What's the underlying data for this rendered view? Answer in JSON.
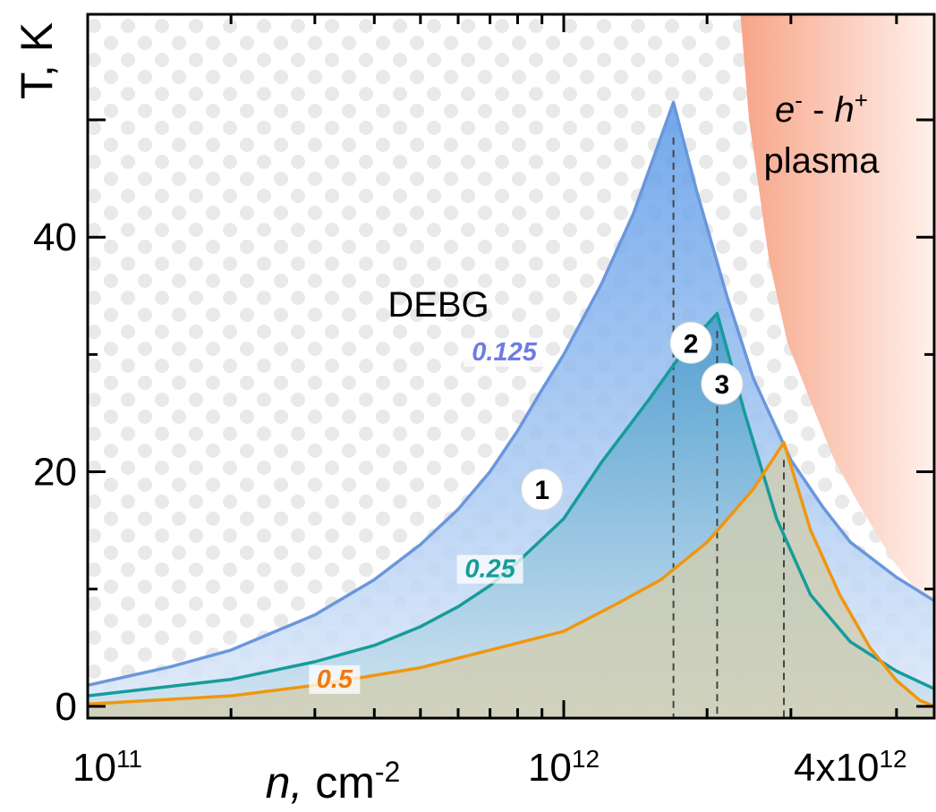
{
  "chart_data": {
    "type": "area",
    "xscale": "log",
    "xlim": [
      100000000000.0,
      6000000000000.0
    ],
    "ylim": [
      -1,
      59
    ],
    "xlabel": {
      "var": "n,",
      "unit": " cm",
      "exp": "-2"
    },
    "ylabel": "T, K",
    "xticks": [
      {
        "value": 100000000000.0,
        "base": "10",
        "exp": "11"
      },
      {
        "value": 1000000000000.0,
        "base": "10",
        "exp": "12"
      },
      {
        "value": 4000000000000.0,
        "base": "4x10",
        "exp": "12"
      }
    ],
    "yticks": [
      {
        "value": 0,
        "label": "0"
      },
      {
        "value": 20,
        "label": "20"
      },
      {
        "value": 40,
        "label": "40"
      }
    ],
    "regions": {
      "debg": "DEBG",
      "plasma_line1_a": "e",
      "plasma_line1_a_sup": "-",
      "plasma_line1_mid": " - ",
      "plasma_line1_b": "h",
      "plasma_line1_b_sup": "+",
      "plasma_line2": "plasma",
      "plasma_boundary": [
        [
          2350000000000.0,
          59
        ],
        [
          2450000000000.0,
          50
        ],
        [
          2700000000000.0,
          38
        ],
        [
          2950000000000.0,
          31
        ],
        [
          3300000000000.0,
          26
        ],
        [
          3700000000000.0,
          21
        ],
        [
          4200000000000.0,
          17
        ],
        [
          4900000000000.0,
          12.5
        ],
        [
          5600000000000.0,
          9.5
        ],
        [
          6000000000000.0,
          8
        ]
      ]
    },
    "series": [
      {
        "label": "0.125",
        "color": "#6a97dc",
        "fill": "#8fb9f0",
        "label_color": "#6e7ce0",
        "label_at": [
          750000000000.0,
          29.5
        ],
        "points": [
          [
            100000000000.0,
            1.8
          ],
          [
            150000000000.0,
            3.4
          ],
          [
            200000000000.0,
            4.8
          ],
          [
            300000000000.0,
            7.8
          ],
          [
            400000000000.0,
            10.8
          ],
          [
            500000000000.0,
            13.8
          ],
          [
            600000000000.0,
            16.8
          ],
          [
            700000000000.0,
            20
          ],
          [
            800000000000.0,
            23.5
          ],
          [
            900000000000.0,
            27
          ],
          [
            1000000000000.0,
            30
          ],
          [
            1200000000000.0,
            36
          ],
          [
            1400000000000.0,
            42
          ],
          [
            1700000000000.0,
            51.5
          ],
          [
            1900000000000.0,
            44
          ],
          [
            2200000000000.0,
            35
          ],
          [
            2500000000000.0,
            28
          ],
          [
            3000000000000.0,
            21
          ],
          [
            3500000000000.0,
            17
          ],
          [
            4000000000000.0,
            14
          ],
          [
            5000000000000.0,
            11
          ],
          [
            6000000000000.0,
            9
          ]
        ]
      },
      {
        "label": "0.25",
        "color": "#169c9a",
        "fill": "#3f9cc2",
        "label_color": "#169c9a",
        "label_at": [
          700000000000.0,
          11
        ],
        "points": [
          [
            100000000000.0,
            0.9
          ],
          [
            200000000000.0,
            2.3
          ],
          [
            300000000000.0,
            3.8
          ],
          [
            400000000000.0,
            5.2
          ],
          [
            500000000000.0,
            6.8
          ],
          [
            600000000000.0,
            8.5
          ],
          [
            700000000000.0,
            10.3
          ],
          [
            800000000000.0,
            12.3
          ],
          [
            1000000000000.0,
            16
          ],
          [
            1200000000000.0,
            20.8
          ],
          [
            1500000000000.0,
            26
          ],
          [
            1800000000000.0,
            30.5
          ],
          [
            2100000000000.0,
            33.5
          ],
          [
            2400000000000.0,
            25
          ],
          [
            2800000000000.0,
            16
          ],
          [
            3300000000000.0,
            9.5
          ],
          [
            4000000000000.0,
            5.5
          ],
          [
            5000000000000.0,
            3
          ],
          [
            6000000000000.0,
            1.5
          ]
        ]
      },
      {
        "label": "0.5",
        "color": "#f0960f",
        "fill": "#cccba6",
        "label_color": "#f07a10",
        "label_at": [
          330000000000.0,
          1.6
        ],
        "points": [
          [
            100000000000.0,
            0.2
          ],
          [
            200000000000.0,
            0.9
          ],
          [
            300000000000.0,
            1.8
          ],
          [
            500000000000.0,
            3.3
          ],
          [
            700000000000.0,
            4.8
          ],
          [
            1000000000000.0,
            6.4
          ],
          [
            1300000000000.0,
            8.8
          ],
          [
            1600000000000.0,
            10.8
          ],
          [
            2000000000000.0,
            14
          ],
          [
            2500000000000.0,
            18.5
          ],
          [
            2900000000000.0,
            22.5
          ],
          [
            3300000000000.0,
            15
          ],
          [
            3800000000000.0,
            9.5
          ],
          [
            4400000000000.0,
            5
          ],
          [
            5000000000000.0,
            2.2
          ],
          [
            5600000000000.0,
            0.5
          ],
          [
            6000000000000.0,
            0
          ]
        ]
      }
    ],
    "vlines": [
      1700000000000.0,
      2100000000000.0,
      2900000000000.0
    ],
    "markers": [
      {
        "label": "1",
        "at": [
          900000000000.0,
          18.5
        ]
      },
      {
        "label": "2",
        "at": [
          1850000000000.0,
          31
        ]
      },
      {
        "label": "3",
        "at": [
          2150000000000.0,
          27.5
        ]
      }
    ]
  }
}
